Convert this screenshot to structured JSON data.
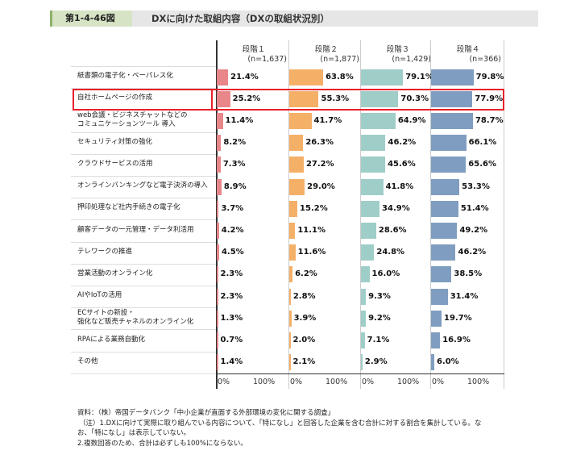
{
  "header": {
    "figure_no": "第1-4-46図",
    "title": "DXに向けた取組内容（DXの取組状況別）"
  },
  "chart_data": {
    "type": "bar",
    "orientation": "horizontal",
    "xlim": [
      0,
      100
    ],
    "unit": "%",
    "panels": [
      {
        "name": "段階１",
        "n": "(n=1,637)",
        "color": "#e8868a"
      },
      {
        "name": "段階２",
        "n": "(n=1,877)",
        "color": "#f5b068"
      },
      {
        "name": "段階３",
        "n": "(n=1,429)",
        "color": "#9fcdc8"
      },
      {
        "name": "段階４",
        "n": "(n=366)",
        "color": "#7f9dc0"
      }
    ],
    "tick_labels": [
      "0%",
      "100%"
    ],
    "categories": [
      [
        "紙書類の電子化・ペーパレス化"
      ],
      [
        "自社ホームページの作成"
      ],
      [
        "web会議・ビジネスチャットなどの",
        "コミュニケーションツール 導入"
      ],
      [
        "セキュリティ対策の強化"
      ],
      [
        "クラウドサービスの活用"
      ],
      [
        "オンラインバンキングなど電子決済の導入"
      ],
      [
        "押印処理など社内手続きの電子化"
      ],
      [
        "顧客データの一元管理・データ利活用"
      ],
      [
        "テレワークの推進"
      ],
      [
        "営業活動のオンライン化"
      ],
      [
        "AIやIoTの活用"
      ],
      [
        "ECサイトの新設・",
        "強化など販売チャネルのオンライン化"
      ],
      [
        "RPAによる業務自動化"
      ],
      [
        "その他"
      ]
    ],
    "values": [
      [
        21.4,
        63.8,
        79.1,
        79.8
      ],
      [
        25.2,
        55.3,
        70.3,
        77.9
      ],
      [
        11.4,
        41.7,
        64.9,
        78.7
      ],
      [
        8.2,
        26.3,
        46.2,
        66.1
      ],
      [
        7.3,
        27.2,
        45.6,
        65.6
      ],
      [
        8.9,
        29.0,
        41.8,
        53.3
      ],
      [
        3.7,
        15.2,
        34.9,
        51.4
      ],
      [
        4.2,
        11.1,
        28.6,
        49.2
      ],
      [
        4.5,
        11.6,
        24.8,
        46.2
      ],
      [
        2.3,
        6.2,
        16.0,
        38.5
      ],
      [
        2.3,
        2.8,
        9.3,
        31.4
      ],
      [
        1.3,
        3.9,
        9.2,
        19.7
      ],
      [
        0.7,
        2.0,
        7.1,
        16.9
      ],
      [
        1.4,
        2.1,
        2.9,
        6.0
      ]
    ],
    "highlighted_category": "自社ホームページの作成",
    "highlight_color": "#e8202a"
  },
  "notes": [
    "資料：（株）帝国データバンク「中小企業が直面する外部環境の変化に関する調査」",
    "（注）1.DXに向けて実際に取り組んでいる内容について、「特になし」と回答した企業を含む合計に対する割合を集計している。な",
    "お、「特になし」は表示していない。",
    "2.複数回答のため、合計は必ずしも100%にならない。"
  ]
}
